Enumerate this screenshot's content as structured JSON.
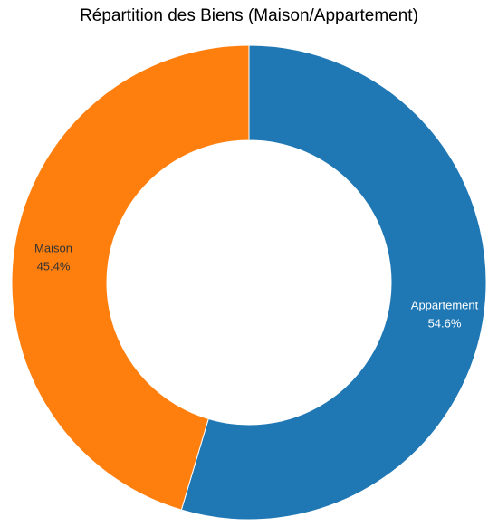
{
  "chart_data": {
    "type": "pie",
    "title": "Répartition des Biens (Maison/Appartement)",
    "donut": true,
    "slices": [
      {
        "label": "Appartement",
        "percent_label": "54.6%",
        "value": 54.6,
        "color": "#1f77b4",
        "label_color": "#ffffff"
      },
      {
        "label": "Maison",
        "percent_label": "45.4%",
        "value": 45.4,
        "color": "#ff7f0e",
        "label_color": "#333333"
      }
    ]
  }
}
